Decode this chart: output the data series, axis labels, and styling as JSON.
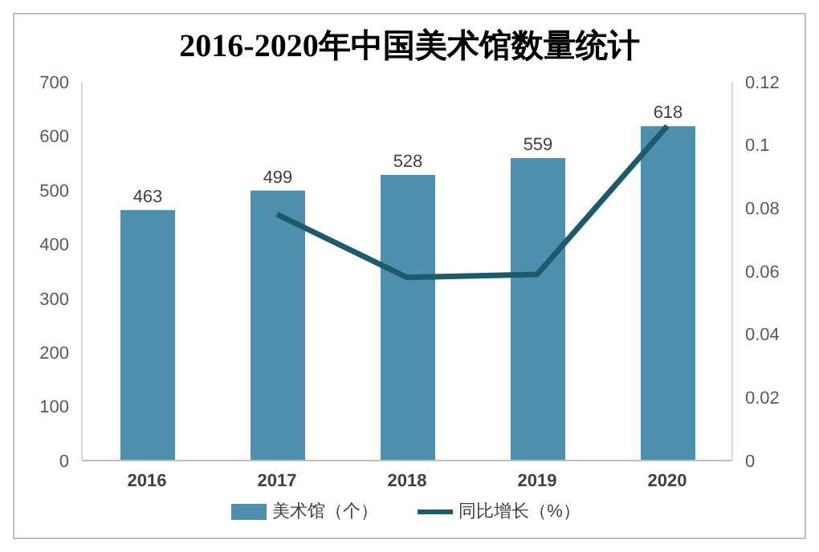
{
  "chart_data": {
    "type": "bar",
    "title": "2016-2020年中国美术馆数量统计",
    "categories": [
      "2016",
      "2017",
      "2018",
      "2019",
      "2020"
    ],
    "series": [
      {
        "name": "美术馆（个）",
        "color": "#4f8fae",
        "values": [
          463,
          499,
          528,
          559,
          618
        ],
        "value_labels": [
          "463",
          "499",
          "528",
          "559",
          "618"
        ]
      },
      {
        "name": "同比增长（%）",
        "type": "line",
        "axis": "y2",
        "color": "#1d5a6c",
        "values": [
          null,
          0.078,
          0.058,
          0.059,
          0.106
        ]
      }
    ],
    "ylim": [
      0,
      700
    ],
    "yticks": [
      0,
      100,
      200,
      300,
      400,
      500,
      600,
      700
    ],
    "y2lim": [
      0,
      0.12
    ],
    "y2ticks": [
      0,
      0.02,
      0.04,
      0.06,
      0.08,
      0.1,
      0.12
    ],
    "grid": false,
    "legend": "bottom",
    "marker": "none",
    "line_style": "solid"
  }
}
